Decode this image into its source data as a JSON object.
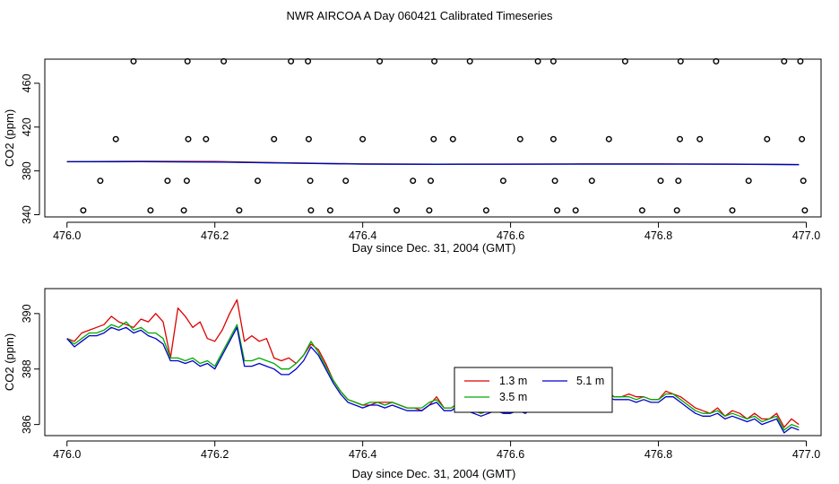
{
  "figure": {
    "title": "NWR AIRCOA A  Day 060421  Calibrated Timeseries"
  },
  "chart_data": [
    {
      "type": "scatter",
      "xlabel": "Day since Dec. 31, 2004 (GMT)",
      "ylabel": "CO2 (ppm)",
      "xlim": [
        475.97,
        477.02
      ],
      "ylim": [
        338,
        482
      ],
      "xticks": [
        "476.0",
        "476.2",
        "476.4",
        "476.6",
        "476.8",
        "477.0"
      ],
      "xtick_values": [
        476.0,
        476.2,
        476.4,
        476.6,
        476.8,
        477.0
      ],
      "yticks": [
        "340",
        "380",
        "420",
        "460"
      ],
      "ytick_values": [
        340,
        380,
        420,
        460
      ],
      "grid": false,
      "circles": {
        "x": [
          476.09,
          476.163,
          476.212,
          476.303,
          476.326,
          476.423,
          476.497,
          476.545,
          476.637,
          476.658,
          476.755,
          476.83,
          476.878,
          476.97,
          476.992,
          476.066,
          476.164,
          476.188,
          476.28,
          476.327,
          476.4,
          476.496,
          476.522,
          476.613,
          476.658,
          476.733,
          476.829,
          476.856,
          476.947,
          476.994,
          476.045,
          476.136,
          476.162,
          476.258,
          476.329,
          476.377,
          476.468,
          476.492,
          476.59,
          476.66,
          476.71,
          476.803,
          476.827,
          476.922,
          476.996,
          476.022,
          476.113,
          476.158,
          476.233,
          476.33,
          476.356,
          476.446,
          476.49,
          476.567,
          476.663,
          476.688,
          476.778,
          476.825,
          476.9,
          476.998
        ],
        "y": [
          480,
          480,
          480,
          480,
          480,
          480,
          480,
          480,
          480,
          480,
          480,
          480,
          480,
          480,
          480,
          409,
          409,
          409,
          409,
          409,
          409,
          409,
          409,
          409,
          409,
          409,
          409,
          409,
          409,
          409,
          371,
          371,
          371,
          371,
          371,
          371,
          371,
          371,
          371,
          371,
          371,
          371,
          371,
          371,
          371,
          344,
          344,
          344,
          344,
          344,
          344,
          344,
          344,
          344,
          344,
          344,
          344,
          344,
          344,
          344
        ]
      },
      "series": [
        {
          "x": [
            476.0,
            476.1,
            476.2,
            476.3,
            476.4,
            476.5,
            476.6,
            476.7,
            476.8,
            476.9,
            476.99
          ],
          "y": [
            388.5,
            388.8,
            388.6,
            387.4,
            386.4,
            386.2,
            386.3,
            386.4,
            386.4,
            386.3,
            385.9
          ]
        },
        {
          "x": [
            476.0,
            476.1,
            476.2,
            476.3,
            476.4,
            476.5,
            476.6,
            476.7,
            476.8,
            476.9,
            476.99
          ],
          "y": [
            388.4,
            388.5,
            388.2,
            387.2,
            386.3,
            386.1,
            386.2,
            386.3,
            386.3,
            386.2,
            385.8
          ]
        },
        {
          "x": [
            476.0,
            476.1,
            476.2,
            476.3,
            476.4,
            476.5,
            476.6,
            476.7,
            476.8,
            476.9,
            476.99
          ],
          "y": [
            388.3,
            388.4,
            388.1,
            387.1,
            386.2,
            386.0,
            386.1,
            386.2,
            386.2,
            386.1,
            385.7
          ]
        }
      ]
    },
    {
      "type": "line",
      "xlabel": "Day since Dec. 31, 2004 (GMT)",
      "ylabel": "CO2 (ppm)",
      "xlim": [
        475.97,
        477.02
      ],
      "ylim": [
        385.6,
        390.9
      ],
      "xticks": [
        "476.0",
        "476.2",
        "476.4",
        "476.6",
        "476.8",
        "477.0"
      ],
      "xtick_values": [
        476.0,
        476.2,
        476.4,
        476.6,
        476.8,
        477.0
      ],
      "yticks": [
        "386",
        "388",
        "390"
      ],
      "ytick_values": [
        386,
        388,
        390
      ],
      "grid": false,
      "legend_position": "center-right",
      "series": [
        {
          "name": "1.3 m",
          "color": "#dd0000",
          "x": [
            476.0,
            476.01,
            476.02,
            476.03,
            476.04,
            476.05,
            476.06,
            476.07,
            476.08,
            476.09,
            476.1,
            476.11,
            476.12,
            476.13,
            476.14,
            476.15,
            476.16,
            476.17,
            476.18,
            476.19,
            476.2,
            476.21,
            476.22,
            476.23,
            476.24,
            476.25,
            476.26,
            476.27,
            476.28,
            476.29,
            476.3,
            476.31,
            476.32,
            476.33,
            476.34,
            476.35,
            476.36,
            476.37,
            476.38,
            476.39,
            476.4,
            476.41,
            476.42,
            476.43,
            476.44,
            476.45,
            476.46,
            476.47,
            476.48,
            476.49,
            476.5,
            476.51,
            476.52,
            476.53,
            476.54,
            476.55,
            476.56,
            476.57,
            476.58,
            476.59,
            476.6,
            476.61,
            476.62,
            476.63,
            476.64,
            476.65,
            476.66,
            476.67,
            476.68,
            476.69,
            476.7,
            476.71,
            476.72,
            476.73,
            476.74,
            476.75,
            476.76,
            476.77,
            476.78,
            476.79,
            476.8,
            476.81,
            476.82,
            476.83,
            476.84,
            476.85,
            476.86,
            476.87,
            476.88,
            476.89,
            476.9,
            476.91,
            476.92,
            476.93,
            476.94,
            476.95,
            476.96,
            476.97,
            476.98,
            476.99
          ],
          "y": [
            389.1,
            389.0,
            389.3,
            389.4,
            389.5,
            389.6,
            389.9,
            389.7,
            389.6,
            389.5,
            389.8,
            389.7,
            390.0,
            389.7,
            388.4,
            390.2,
            389.9,
            389.5,
            389.7,
            389.1,
            389.0,
            389.4,
            390.0,
            390.5,
            389.0,
            389.2,
            389.0,
            389.1,
            388.4,
            388.3,
            388.4,
            388.2,
            388.5,
            388.9,
            388.7,
            388.2,
            387.6,
            387.2,
            386.9,
            386.8,
            386.7,
            386.7,
            386.8,
            386.8,
            386.8,
            386.7,
            386.6,
            386.6,
            386.5,
            386.7,
            387.0,
            386.6,
            386.6,
            386.8,
            386.7,
            386.5,
            386.4,
            386.5,
            386.6,
            386.5,
            386.5,
            386.6,
            386.5,
            386.7,
            386.8,
            386.7,
            386.8,
            386.7,
            386.8,
            386.9,
            386.9,
            387.1,
            387.0,
            387.2,
            387.0,
            387.0,
            387.1,
            387.0,
            387.0,
            386.9,
            386.9,
            387.2,
            387.1,
            387.0,
            386.8,
            386.6,
            386.5,
            386.4,
            386.6,
            386.3,
            386.5,
            386.4,
            386.2,
            386.4,
            386.2,
            386.2,
            386.4,
            385.9,
            386.2,
            386.0
          ]
        },
        {
          "name": "3.5 m",
          "color": "#00aa00",
          "x": [
            476.0,
            476.01,
            476.02,
            476.03,
            476.04,
            476.05,
            476.06,
            476.07,
            476.08,
            476.09,
            476.1,
            476.11,
            476.12,
            476.13,
            476.14,
            476.15,
            476.16,
            476.17,
            476.18,
            476.19,
            476.2,
            476.21,
            476.22,
            476.23,
            476.24,
            476.25,
            476.26,
            476.27,
            476.28,
            476.29,
            476.3,
            476.31,
            476.32,
            476.33,
            476.34,
            476.35,
            476.36,
            476.37,
            476.38,
            476.39,
            476.4,
            476.41,
            476.42,
            476.43,
            476.44,
            476.45,
            476.46,
            476.47,
            476.48,
            476.49,
            476.5,
            476.51,
            476.52,
            476.53,
            476.54,
            476.55,
            476.56,
            476.57,
            476.58,
            476.59,
            476.6,
            476.61,
            476.62,
            476.63,
            476.64,
            476.65,
            476.66,
            476.67,
            476.68,
            476.69,
            476.7,
            476.71,
            476.72,
            476.73,
            476.74,
            476.75,
            476.76,
            476.77,
            476.78,
            476.79,
            476.8,
            476.81,
            476.82,
            476.83,
            476.84,
            476.85,
            476.86,
            476.87,
            476.88,
            476.89,
            476.9,
            476.91,
            476.92,
            476.93,
            476.94,
            476.95,
            476.96,
            476.97,
            476.98,
            476.99
          ],
          "y": [
            389.1,
            388.9,
            389.1,
            389.3,
            389.3,
            389.4,
            389.6,
            389.5,
            389.7,
            389.4,
            389.5,
            389.3,
            389.3,
            389.1,
            388.4,
            388.4,
            388.3,
            388.4,
            388.2,
            388.3,
            388.1,
            388.6,
            389.1,
            389.6,
            388.3,
            388.3,
            388.4,
            388.3,
            388.2,
            388.0,
            388.0,
            388.2,
            388.5,
            389.0,
            388.6,
            388.1,
            387.6,
            387.2,
            386.9,
            386.8,
            386.7,
            386.8,
            386.8,
            386.7,
            386.8,
            386.7,
            386.6,
            386.6,
            386.6,
            386.8,
            386.9,
            386.6,
            386.6,
            386.8,
            386.6,
            386.5,
            386.4,
            386.5,
            386.6,
            386.5,
            386.5,
            386.6,
            386.5,
            386.7,
            386.8,
            386.7,
            386.8,
            386.8,
            386.8,
            386.9,
            387.0,
            387.1,
            386.9,
            387.1,
            387.0,
            387.0,
            387.0,
            386.9,
            387.0,
            386.9,
            386.9,
            387.1,
            387.1,
            386.9,
            386.7,
            386.5,
            386.4,
            386.4,
            386.5,
            386.3,
            386.4,
            386.3,
            386.2,
            386.3,
            386.1,
            386.2,
            386.3,
            385.8,
            386.0,
            385.9
          ]
        },
        {
          "name": "5.1 m",
          "color": "#0000cc",
          "x": [
            476.0,
            476.01,
            476.02,
            476.03,
            476.04,
            476.05,
            476.06,
            476.07,
            476.08,
            476.09,
            476.1,
            476.11,
            476.12,
            476.13,
            476.14,
            476.15,
            476.16,
            476.17,
            476.18,
            476.19,
            476.2,
            476.21,
            476.22,
            476.23,
            476.24,
            476.25,
            476.26,
            476.27,
            476.28,
            476.29,
            476.3,
            476.31,
            476.32,
            476.33,
            476.34,
            476.35,
            476.36,
            476.37,
            476.38,
            476.39,
            476.4,
            476.41,
            476.42,
            476.43,
            476.44,
            476.45,
            476.46,
            476.47,
            476.48,
            476.49,
            476.5,
            476.51,
            476.52,
            476.53,
            476.54,
            476.55,
            476.56,
            476.57,
            476.58,
            476.59,
            476.6,
            476.61,
            476.62,
            476.63,
            476.64,
            476.65,
            476.66,
            476.67,
            476.68,
            476.69,
            476.7,
            476.71,
            476.72,
            476.73,
            476.74,
            476.75,
            476.76,
            476.77,
            476.78,
            476.79,
            476.8,
            476.81,
            476.82,
            476.83,
            476.84,
            476.85,
            476.86,
            476.87,
            476.88,
            476.89,
            476.9,
            476.91,
            476.92,
            476.93,
            476.94,
            476.95,
            476.96,
            476.97,
            476.98,
            476.99
          ],
          "y": [
            389.1,
            388.8,
            389.0,
            389.2,
            389.2,
            389.3,
            389.5,
            389.4,
            389.5,
            389.3,
            389.4,
            389.2,
            389.1,
            388.9,
            388.3,
            388.3,
            388.2,
            388.3,
            388.1,
            388.2,
            388.0,
            388.5,
            389.0,
            389.5,
            388.1,
            388.1,
            388.2,
            388.1,
            388.0,
            387.8,
            387.8,
            388.0,
            388.3,
            388.8,
            388.5,
            388.0,
            387.5,
            387.1,
            386.8,
            386.7,
            386.6,
            386.7,
            386.7,
            386.6,
            386.7,
            386.6,
            386.5,
            386.5,
            386.5,
            386.7,
            386.8,
            386.5,
            386.5,
            386.7,
            386.5,
            386.4,
            386.3,
            386.4,
            386.5,
            386.4,
            386.4,
            386.5,
            386.4,
            386.6,
            386.7,
            386.6,
            386.7,
            386.7,
            386.7,
            386.8,
            386.9,
            387.0,
            386.8,
            387.0,
            386.9,
            386.9,
            386.9,
            386.8,
            386.9,
            386.8,
            386.8,
            387.0,
            387.0,
            386.8,
            386.6,
            386.4,
            386.3,
            386.3,
            386.4,
            386.2,
            386.3,
            386.2,
            386.1,
            386.2,
            386.0,
            386.1,
            386.2,
            385.7,
            385.9,
            385.8
          ]
        }
      ]
    }
  ]
}
